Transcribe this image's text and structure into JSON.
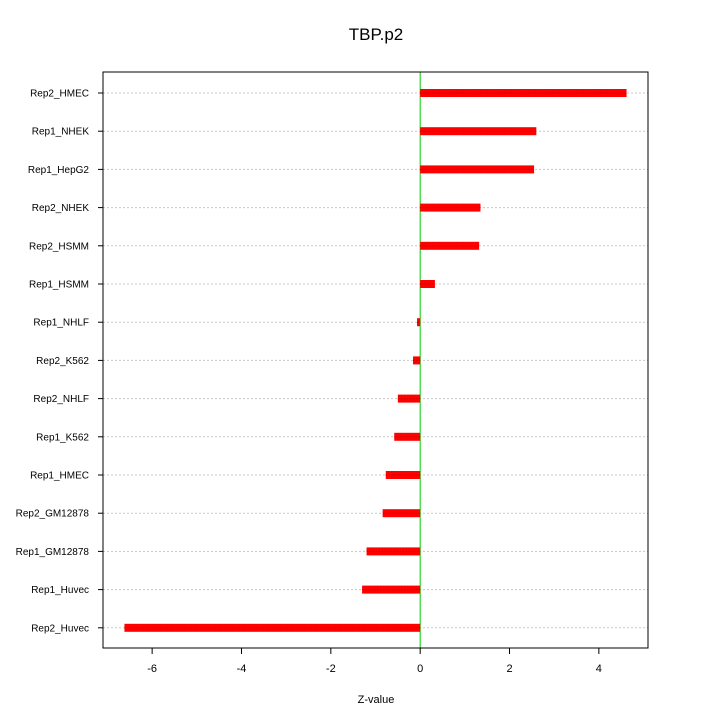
{
  "chart_data": {
    "type": "bar",
    "orientation": "horizontal",
    "title": "TBP.p2",
    "xlabel": "Z-value",
    "ylabel": "",
    "xlim": [
      -7.1,
      5.1
    ],
    "x_ticks": [
      -6,
      -4,
      -2,
      0,
      2,
      4
    ],
    "x_tick_labels": [
      "-6",
      "-4",
      "-2",
      "0",
      "2",
      "4"
    ],
    "categories": [
      "Rep2_HMEC",
      "Rep1_NHEK",
      "Rep1_HepG2",
      "Rep2_NHEK",
      "Rep2_HSMM",
      "Rep1_HSMM",
      "Rep1_NHLF",
      "Rep2_K562",
      "Rep2_NHLF",
      "Rep1_K562",
      "Rep1_HMEC",
      "Rep2_GM12878",
      "Rep1_GM12878",
      "Rep1_Huvec",
      "Rep2_Huvec"
    ],
    "values": [
      4.62,
      2.6,
      2.55,
      1.35,
      1.32,
      0.33,
      -0.07,
      -0.16,
      -0.5,
      -0.58,
      -0.77,
      -0.84,
      -1.2,
      -1.3,
      -6.62
    ],
    "grid": true,
    "zero_line": true,
    "colors": {
      "bar": "#ff0000",
      "bar_inner": "#cc0000",
      "zero_line": "#00cc00",
      "grid": "#c8c8c8",
      "axis": "#000000"
    }
  }
}
